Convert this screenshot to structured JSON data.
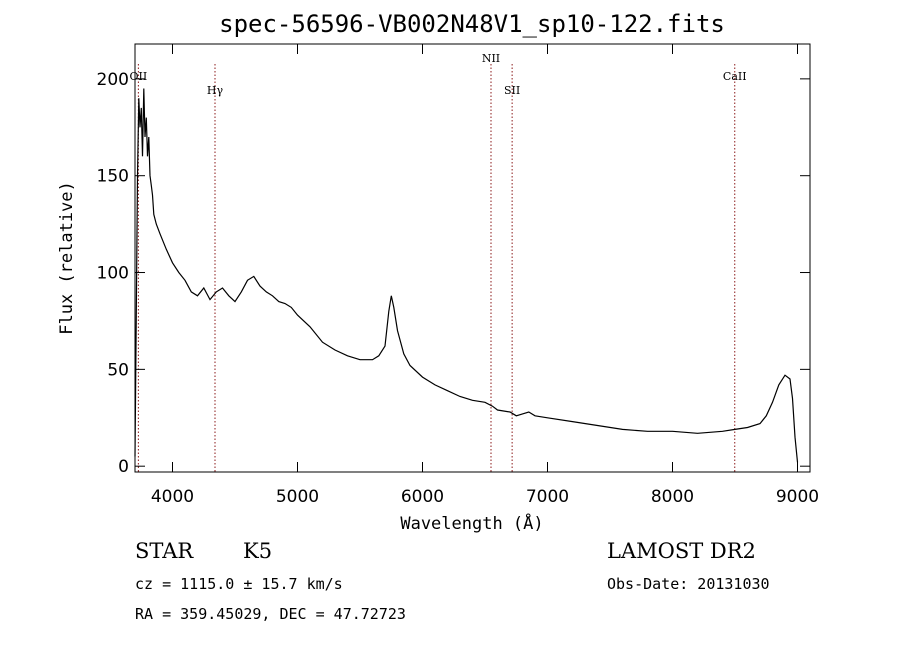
{
  "chart_data": {
    "type": "line",
    "title": "spec-56596-VB002N48V1_sp10-122.fits",
    "xlabel": "Wavelength (Å)",
    "ylabel": "Flux (relative)",
    "xlim": [
      3700,
      9100
    ],
    "ylim": [
      -3,
      218
    ],
    "xticks": [
      4000,
      5000,
      6000,
      7000,
      8000,
      9000
    ],
    "yticks": [
      0,
      50,
      100,
      150,
      200
    ],
    "grid": false,
    "series": [
      {
        "color": "#000000",
        "x": [
          3700,
          3710,
          3720,
          3730,
          3740,
          3750,
          3760,
          3770,
          3780,
          3790,
          3800,
          3810,
          3820,
          3830,
          3840,
          3850,
          3870,
          3900,
          3950,
          4000,
          4050,
          4100,
          4150,
          4200,
          4250,
          4300,
          4350,
          4400,
          4450,
          4500,
          4550,
          4600,
          4650,
          4700,
          4750,
          4800,
          4850,
          4900,
          4950,
          5000,
          5100,
          5200,
          5300,
          5400,
          5500,
          5600,
          5650,
          5700,
          5730,
          5750,
          5770,
          5800,
          5850,
          5900,
          6000,
          6100,
          6200,
          6300,
          6400,
          6500,
          6560,
          6600,
          6700,
          6750,
          6800,
          6850,
          6900,
          7000,
          7200,
          7400,
          7600,
          7800,
          8000,
          8200,
          8400,
          8500,
          8600,
          8700,
          8750,
          8800,
          8850,
          8900,
          8940,
          8960,
          8980,
          9000
        ],
        "y": [
          5,
          80,
          150,
          190,
          175,
          185,
          160,
          195,
          170,
          180,
          160,
          170,
          150,
          145,
          140,
          130,
          125,
          120,
          112,
          105,
          100,
          96,
          90,
          88,
          92,
          86,
          90,
          92,
          88,
          85,
          90,
          96,
          98,
          93,
          90,
          88,
          85,
          84,
          82,
          78,
          72,
          64,
          60,
          57,
          55,
          55,
          57,
          62,
          80,
          88,
          82,
          70,
          58,
          52,
          46,
          42,
          39,
          36,
          34,
          33,
          31,
          29,
          28,
          26,
          27,
          28,
          26,
          25,
          23,
          21,
          19,
          18,
          18,
          17,
          18,
          19,
          20,
          22,
          26,
          33,
          42,
          47,
          45,
          35,
          15,
          2
        ]
      }
    ],
    "annotations": [
      {
        "label": "OII",
        "x": 3727
      },
      {
        "label": "Hγ",
        "x": 4340
      },
      {
        "label": "NII",
        "x": 6548
      },
      {
        "label": "SII",
        "x": 6717
      },
      {
        "label": "CaII",
        "x": 8498
      }
    ],
    "line_color": "#8b1a1a"
  },
  "info": {
    "class": "STAR",
    "subclass": "K5",
    "cz": "cz = 1115.0 ± 15.7 km/s",
    "coords": "RA = 359.45029, DEC =  47.72723",
    "survey": "LAMOST DR2",
    "obs_date": "Obs-Date: 20131030"
  }
}
